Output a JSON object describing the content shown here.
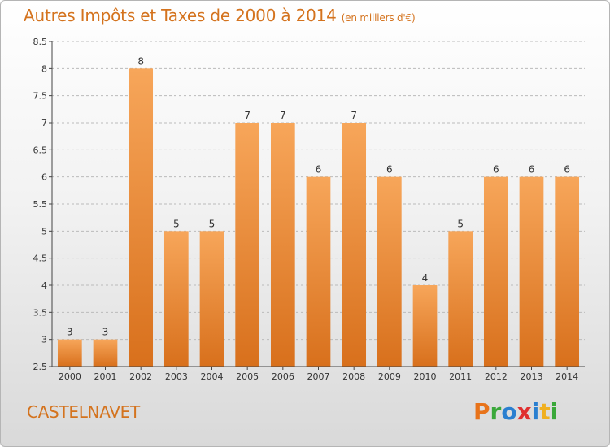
{
  "header": {
    "title": "Autres Impôts et Taxes de 2000 à 2014",
    "subtitle": "(en milliers d'€)"
  },
  "footer": {
    "commune": "CASTELNAVET",
    "logo_text": "Proxiti",
    "logo_colors": [
      "#e8731a",
      "#3aa83a",
      "#2a7fd0",
      "#e03030",
      "#2a7fd0",
      "#f0b020",
      "#3aa83a"
    ]
  },
  "colors": {
    "bar_light": "#f7a65a",
    "bar_dark": "#d8701c",
    "grid": "#bbbbbb",
    "axis": "#444444",
    "accent": "#d4731e"
  },
  "chart_data": {
    "type": "bar",
    "title": "Autres Impôts et Taxes de 2000 à 2014",
    "subtitle": "(en milliers d'€)",
    "categories": [
      "2000",
      "2001",
      "2002",
      "2003",
      "2004",
      "2005",
      "2006",
      "2007",
      "2008",
      "2009",
      "2010",
      "2011",
      "2012",
      "2013",
      "2014"
    ],
    "values": [
      3,
      3,
      8,
      5,
      5,
      7,
      7,
      6,
      7,
      6,
      4,
      5,
      6,
      6,
      6
    ],
    "data_labels": [
      "3",
      "3",
      "8",
      "5",
      "5",
      "7",
      "7",
      "6",
      "7",
      "6",
      "4",
      "5",
      "6",
      "6",
      "6"
    ],
    "ylim": [
      2.5,
      8.5
    ],
    "yticks": [
      "2.5",
      "3",
      "3.5",
      "4",
      "4.5",
      "5",
      "5.5",
      "6",
      "6.5",
      "7",
      "7.5",
      "8",
      "8.5"
    ],
    "grid": "horizontal dashed",
    "xlabel": "",
    "ylabel": ""
  }
}
